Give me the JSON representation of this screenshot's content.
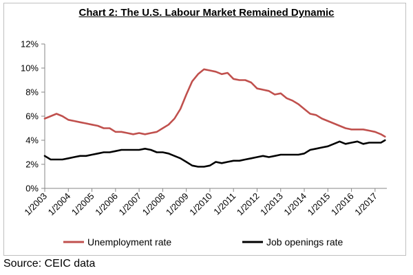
{
  "chart_data": {
    "type": "line",
    "title": "Chart 2: The U.S. Labour Market Remained Dynamic",
    "source": "Source: CEIC data",
    "ylim": [
      0,
      12
    ],
    "xlim": [
      2003.0,
      2017.5
    ],
    "grid": false,
    "legend": "bottom",
    "y_ticks": [
      {
        "value": 0,
        "label": "0%"
      },
      {
        "value": 2,
        "label": "2%"
      },
      {
        "value": 4,
        "label": "4%"
      },
      {
        "value": 6,
        "label": "6%"
      },
      {
        "value": 8,
        "label": "8%"
      },
      {
        "value": 10,
        "label": "10%"
      },
      {
        "value": 12,
        "label": "12%"
      }
    ],
    "x_ticks": [
      {
        "value": 2003,
        "label": "1/2003"
      },
      {
        "value": 2004,
        "label": "1/2004"
      },
      {
        "value": 2005,
        "label": "1/2005"
      },
      {
        "value": 2006,
        "label": "1/2006"
      },
      {
        "value": 2007,
        "label": "1/2007"
      },
      {
        "value": 2008,
        "label": "1/2008"
      },
      {
        "value": 2009,
        "label": "1/2009"
      },
      {
        "value": 2010,
        "label": "1/2010"
      },
      {
        "value": 2011,
        "label": "1/2011"
      },
      {
        "value": 2012,
        "label": "1/2012"
      },
      {
        "value": 2013,
        "label": "1/2013"
      },
      {
        "value": 2014,
        "label": "1/2014"
      },
      {
        "value": 2015,
        "label": "1/2015"
      },
      {
        "value": 2016,
        "label": "1/2016"
      },
      {
        "value": 2017,
        "label": "1/2017"
      }
    ],
    "series": [
      {
        "name": "Unemployment rate",
        "color": "#c0504d",
        "points": [
          [
            2003.0,
            5.8
          ],
          [
            2003.25,
            6.0
          ],
          [
            2003.5,
            6.2
          ],
          [
            2003.75,
            6.0
          ],
          [
            2004.0,
            5.7
          ],
          [
            2004.25,
            5.6
          ],
          [
            2004.5,
            5.5
          ],
          [
            2004.75,
            5.4
          ],
          [
            2005.0,
            5.3
          ],
          [
            2005.25,
            5.2
          ],
          [
            2005.5,
            5.0
          ],
          [
            2005.75,
            5.0
          ],
          [
            2006.0,
            4.7
          ],
          [
            2006.25,
            4.7
          ],
          [
            2006.5,
            4.6
          ],
          [
            2006.75,
            4.5
          ],
          [
            2007.0,
            4.6
          ],
          [
            2007.25,
            4.5
          ],
          [
            2007.5,
            4.6
          ],
          [
            2007.75,
            4.7
          ],
          [
            2008.0,
            5.0
          ],
          [
            2008.25,
            5.3
          ],
          [
            2008.5,
            5.8
          ],
          [
            2008.75,
            6.6
          ],
          [
            2009.0,
            7.8
          ],
          [
            2009.25,
            8.9
          ],
          [
            2009.5,
            9.5
          ],
          [
            2009.75,
            9.9
          ],
          [
            2010.0,
            9.8
          ],
          [
            2010.25,
            9.7
          ],
          [
            2010.5,
            9.5
          ],
          [
            2010.75,
            9.6
          ],
          [
            2011.0,
            9.1
          ],
          [
            2011.25,
            9.0
          ],
          [
            2011.5,
            9.0
          ],
          [
            2011.75,
            8.8
          ],
          [
            2012.0,
            8.3
          ],
          [
            2012.25,
            8.2
          ],
          [
            2012.5,
            8.1
          ],
          [
            2012.75,
            7.8
          ],
          [
            2013.0,
            7.9
          ],
          [
            2013.25,
            7.5
          ],
          [
            2013.5,
            7.3
          ],
          [
            2013.75,
            7.0
          ],
          [
            2014.0,
            6.6
          ],
          [
            2014.25,
            6.2
          ],
          [
            2014.5,
            6.1
          ],
          [
            2014.75,
            5.8
          ],
          [
            2015.0,
            5.6
          ],
          [
            2015.25,
            5.4
          ],
          [
            2015.5,
            5.2
          ],
          [
            2015.75,
            5.0
          ],
          [
            2016.0,
            4.9
          ],
          [
            2016.25,
            4.9
          ],
          [
            2016.5,
            4.9
          ],
          [
            2016.75,
            4.8
          ],
          [
            2017.0,
            4.7
          ],
          [
            2017.25,
            4.5
          ],
          [
            2017.42,
            4.3
          ]
        ]
      },
      {
        "name": "Job openings rate",
        "color": "#000000",
        "points": [
          [
            2003.0,
            2.7
          ],
          [
            2003.25,
            2.4
          ],
          [
            2003.5,
            2.4
          ],
          [
            2003.75,
            2.4
          ],
          [
            2004.0,
            2.5
          ],
          [
            2004.25,
            2.6
          ],
          [
            2004.5,
            2.7
          ],
          [
            2004.75,
            2.7
          ],
          [
            2005.0,
            2.8
          ],
          [
            2005.25,
            2.9
          ],
          [
            2005.5,
            3.0
          ],
          [
            2005.75,
            3.0
          ],
          [
            2006.0,
            3.1
          ],
          [
            2006.25,
            3.2
          ],
          [
            2006.5,
            3.2
          ],
          [
            2006.75,
            3.2
          ],
          [
            2007.0,
            3.2
          ],
          [
            2007.25,
            3.3
          ],
          [
            2007.5,
            3.2
          ],
          [
            2007.75,
            3.0
          ],
          [
            2008.0,
            3.0
          ],
          [
            2008.25,
            2.9
          ],
          [
            2008.5,
            2.7
          ],
          [
            2008.75,
            2.5
          ],
          [
            2009.0,
            2.2
          ],
          [
            2009.25,
            1.9
          ],
          [
            2009.5,
            1.8
          ],
          [
            2009.75,
            1.8
          ],
          [
            2010.0,
            1.9
          ],
          [
            2010.25,
            2.2
          ],
          [
            2010.5,
            2.1
          ],
          [
            2010.75,
            2.2
          ],
          [
            2011.0,
            2.3
          ],
          [
            2011.25,
            2.3
          ],
          [
            2011.5,
            2.4
          ],
          [
            2011.75,
            2.5
          ],
          [
            2012.0,
            2.6
          ],
          [
            2012.25,
            2.7
          ],
          [
            2012.5,
            2.6
          ],
          [
            2012.75,
            2.7
          ],
          [
            2013.0,
            2.8
          ],
          [
            2013.25,
            2.8
          ],
          [
            2013.5,
            2.8
          ],
          [
            2013.75,
            2.8
          ],
          [
            2014.0,
            2.9
          ],
          [
            2014.25,
            3.2
          ],
          [
            2014.5,
            3.3
          ],
          [
            2014.75,
            3.4
          ],
          [
            2015.0,
            3.5
          ],
          [
            2015.25,
            3.7
          ],
          [
            2015.5,
            3.9
          ],
          [
            2015.75,
            3.7
          ],
          [
            2016.0,
            3.8
          ],
          [
            2016.25,
            3.9
          ],
          [
            2016.5,
            3.7
          ],
          [
            2016.75,
            3.8
          ],
          [
            2017.0,
            3.8
          ],
          [
            2017.25,
            3.8
          ],
          [
            2017.42,
            4.0
          ]
        ]
      }
    ]
  }
}
